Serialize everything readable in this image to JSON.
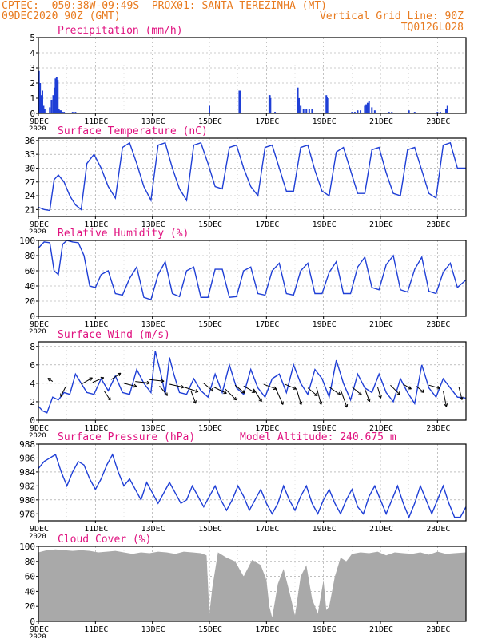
{
  "header": {
    "line1_left": "CPTEC:  050:38W-09:49S  PROX01: SANTA TEREZINHA (MT)",
    "line2_left": "09DEC2020 90Z (GMT)",
    "line2_right": "Vertical Grid Line: 90Z",
    "line3_right": "TQ0126L028"
  },
  "x_tick_labels": [
    "9DEC",
    "11DEC",
    "13DEC",
    "15DEC",
    "17DEC",
    "19DEC",
    "21DEC",
    "23DEC"
  ],
  "x_tick_days": [
    0,
    2,
    4,
    6,
    8,
    10,
    12,
    14
  ],
  "x_corner_label": "2020",
  "x_day_range": [
    0,
    15
  ],
  "model_altitude_text": "Model Altitude: 240.675  m",
  "colors": {
    "title": "#e0117f",
    "header": "#e87a1e",
    "line": "#1f3fd6",
    "bar": "#1f3fd6",
    "cloud": "#a9a9a9",
    "wind_arrow": "#000000"
  },
  "chart_data": [
    {
      "id": "precip",
      "type": "bar",
      "title": "Precipitation (mm/h)",
      "ylim": [
        0,
        5
      ],
      "yticks": [
        0,
        1,
        2,
        3,
        4,
        5
      ],
      "grid": true,
      "x_units": "days since 9DEC 00Z",
      "x": [
        0.02,
        0.06,
        0.1,
        0.14,
        0.18,
        0.22,
        0.4,
        0.46,
        0.52,
        0.56,
        0.6,
        0.64,
        0.68,
        0.72,
        0.76,
        0.8,
        0.84,
        0.9,
        1.2,
        1.3,
        6.0,
        7.05,
        7.08,
        8.1,
        8.12,
        8.14,
        8.3,
        9.1,
        9.14,
        9.2,
        9.3,
        9.4,
        9.5,
        9.6,
        10.1,
        10.12,
        10.14,
        11.0,
        11.1,
        11.2,
        11.3,
        11.45,
        11.5,
        11.55,
        11.6,
        11.7,
        11.8,
        12.3,
        12.4,
        13.0,
        13.2,
        14.0,
        14.1,
        14.3,
        14.35
      ],
      "values": [
        2.8,
        2.0,
        1.2,
        1.5,
        0.5,
        0.3,
        0.4,
        0.9,
        1.2,
        1.7,
        2.3,
        2.4,
        2.2,
        0.3,
        0.2,
        0.2,
        0.1,
        0.1,
        0.1,
        0.1,
        0.5,
        1.5,
        1.5,
        1.2,
        1.2,
        1.0,
        0.1,
        1.7,
        1.0,
        0.5,
        0.3,
        0.3,
        0.3,
        0.3,
        1.2,
        1.1,
        1.0,
        0.1,
        0.1,
        0.2,
        0.2,
        0.5,
        0.6,
        0.7,
        0.8,
        0.4,
        0.2,
        0.1,
        0.1,
        0.2,
        0.1,
        0.1,
        0.1,
        0.3,
        0.5
      ]
    },
    {
      "id": "temp",
      "type": "line",
      "title": "Surface Temperature (nC)",
      "ylim": [
        19.5,
        36.5
      ],
      "yticks": [
        21,
        24,
        27,
        30,
        33,
        36
      ],
      "grid": true,
      "x_units": "days since 9DEC 00Z",
      "x": [
        0,
        0.2,
        0.4,
        0.55,
        0.7,
        0.9,
        1.1,
        1.3,
        1.5,
        1.7,
        1.95,
        2.2,
        2.45,
        2.7,
        2.95,
        3.2,
        3.45,
        3.7,
        3.95,
        4.2,
        4.45,
        4.7,
        4.95,
        5.2,
        5.45,
        5.7,
        5.95,
        6.2,
        6.45,
        6.7,
        6.95,
        7.2,
        7.45,
        7.7,
        7.95,
        8.2,
        8.45,
        8.7,
        8.95,
        9.2,
        9.45,
        9.7,
        9.95,
        10.2,
        10.45,
        10.7,
        10.95,
        11.2,
        11.45,
        11.7,
        11.95,
        12.2,
        12.45,
        12.7,
        12.95,
        13.2,
        13.45,
        13.7,
        13.95,
        14.2,
        14.45,
        14.7,
        15.0
      ],
      "values": [
        21.5,
        21.0,
        20.8,
        27.5,
        28.5,
        27.0,
        24.0,
        22.0,
        21.0,
        31.0,
        33.0,
        30.0,
        26.0,
        23.5,
        34.5,
        35.5,
        31.0,
        26.0,
        23.0,
        35.0,
        35.5,
        30.0,
        25.5,
        23.0,
        35.0,
        35.5,
        31.0,
        26.0,
        25.5,
        34.5,
        35.0,
        30.0,
        26.0,
        24.0,
        34.5,
        35.0,
        30.0,
        25.0,
        25.0,
        34.5,
        35.0,
        29.5,
        25.0,
        24.0,
        33.5,
        34.5,
        29.5,
        24.5,
        24.5,
        34.0,
        34.5,
        29.0,
        24.5,
        24.0,
        34.0,
        34.5,
        29.5,
        24.5,
        23.5,
        35.0,
        35.5,
        30.0,
        30.0
      ]
    },
    {
      "id": "rh",
      "type": "line",
      "title": "Relative Humidity (%)",
      "ylim": [
        0,
        100
      ],
      "yticks": [
        0,
        20,
        40,
        60,
        80,
        100
      ],
      "grid": true,
      "x_units": "days since 9DEC 00Z",
      "x": [
        0,
        0.2,
        0.4,
        0.55,
        0.7,
        0.85,
        1.0,
        1.2,
        1.4,
        1.6,
        1.8,
        2.0,
        2.2,
        2.45,
        2.7,
        2.95,
        3.2,
        3.45,
        3.7,
        3.95,
        4.2,
        4.45,
        4.7,
        4.95,
        5.2,
        5.45,
        5.7,
        5.95,
        6.2,
        6.45,
        6.7,
        6.95,
        7.2,
        7.45,
        7.7,
        7.95,
        8.2,
        8.45,
        8.7,
        8.95,
        9.2,
        9.45,
        9.7,
        9.95,
        10.2,
        10.45,
        10.7,
        10.95,
        11.2,
        11.45,
        11.7,
        11.95,
        12.2,
        12.45,
        12.7,
        12.95,
        13.2,
        13.45,
        13.7,
        13.95,
        14.2,
        14.45,
        14.7,
        15.0
      ],
      "values": [
        90,
        98,
        97,
        60,
        55,
        95,
        100,
        98,
        97,
        80,
        40,
        38,
        55,
        60,
        30,
        28,
        50,
        65,
        25,
        22,
        55,
        72,
        30,
        26,
        60,
        65,
        25,
        25,
        62,
        62,
        25,
        26,
        60,
        65,
        30,
        28,
        60,
        70,
        30,
        28,
        60,
        70,
        30,
        30,
        58,
        72,
        30,
        30,
        65,
        78,
        38,
        35,
        68,
        80,
        35,
        32,
        62,
        78,
        33,
        30,
        58,
        70,
        38,
        48
      ]
    },
    {
      "id": "wind",
      "type": "line",
      "title": "Surface Wind (m/s)",
      "ylim": [
        0,
        8.5
      ],
      "yticks": [
        0,
        2,
        4,
        6,
        8
      ],
      "grid": true,
      "x_units": "days since 9DEC 00Z",
      "x": [
        0,
        0.15,
        0.3,
        0.5,
        0.7,
        0.9,
        1.1,
        1.3,
        1.5,
        1.7,
        1.95,
        2.2,
        2.45,
        2.7,
        2.95,
        3.2,
        3.45,
        3.7,
        3.95,
        4.1,
        4.3,
        4.45,
        4.6,
        4.75,
        4.95,
        5.2,
        5.45,
        5.7,
        5.95,
        6.2,
        6.45,
        6.7,
        6.95,
        7.2,
        7.45,
        7.7,
        7.95,
        8.2,
        8.45,
        8.7,
        8.95,
        9.2,
        9.45,
        9.7,
        9.95,
        10.2,
        10.45,
        10.7,
        10.95,
        11.2,
        11.45,
        11.7,
        11.95,
        12.2,
        12.45,
        12.7,
        12.95,
        13.2,
        13.45,
        13.7,
        13.95,
        14.2,
        14.45,
        14.7,
        15.0
      ],
      "values": [
        1.5,
        1.0,
        0.8,
        2.5,
        2.2,
        3.0,
        2.8,
        5.0,
        4.0,
        3.0,
        2.8,
        4.5,
        3.2,
        4.8,
        3.0,
        2.8,
        5.5,
        4.0,
        3.0,
        7.5,
        5.0,
        2.8,
        6.8,
        5.0,
        3.0,
        2.8,
        4.5,
        3.2,
        2.5,
        5.0,
        3.0,
        6.0,
        3.5,
        2.8,
        5.5,
        3.5,
        2.5,
        4.5,
        5.0,
        3.0,
        6.0,
        4.0,
        2.8,
        5.5,
        4.5,
        2.5,
        6.5,
        4.0,
        2.2,
        5.0,
        3.5,
        3.0,
        5.0,
        3.0,
        2.0,
        4.5,
        3.0,
        1.8,
        6.0,
        3.5,
        2.5,
        4.5,
        3.5,
        2.5,
        2.4
      ],
      "vectors_note": "wind direction arrows",
      "arrows": [
        {
          "x": 0.5,
          "y": 4.2,
          "dx": -6,
          "dy": -4
        },
        {
          "x": 0.95,
          "y": 3.6,
          "dx": -6,
          "dy": 12
        },
        {
          "x": 1.5,
          "y": 3.9,
          "dx": 14,
          "dy": -8
        },
        {
          "x": 1.9,
          "y": 4.1,
          "dx": 14,
          "dy": -6
        },
        {
          "x": 2.3,
          "y": 3.2,
          "dx": 8,
          "dy": 12
        },
        {
          "x": 2.55,
          "y": 4.4,
          "dx": 12,
          "dy": -8
        },
        {
          "x": 3.0,
          "y": 4.0,
          "dx": 16,
          "dy": 4
        },
        {
          "x": 3.4,
          "y": 4.2,
          "dx": 18,
          "dy": 2
        },
        {
          "x": 3.9,
          "y": 4.4,
          "dx": 18,
          "dy": 2
        },
        {
          "x": 4.25,
          "y": 3.7,
          "dx": 10,
          "dy": 12
        },
        {
          "x": 4.6,
          "y": 3.9,
          "dx": 18,
          "dy": 4
        },
        {
          "x": 5.1,
          "y": 3.6,
          "dx": 18,
          "dy": 6
        },
        {
          "x": 5.35,
          "y": 3.2,
          "dx": 6,
          "dy": 16
        },
        {
          "x": 5.8,
          "y": 4.0,
          "dx": 12,
          "dy": 10
        },
        {
          "x": 6.15,
          "y": 3.6,
          "dx": 16,
          "dy": 8
        },
        {
          "x": 6.55,
          "y": 3.4,
          "dx": 14,
          "dy": 14
        },
        {
          "x": 6.9,
          "y": 3.8,
          "dx": 12,
          "dy": 10
        },
        {
          "x": 7.2,
          "y": 3.7,
          "dx": 14,
          "dy": 8
        },
        {
          "x": 7.55,
          "y": 3.4,
          "dx": 10,
          "dy": 16
        },
        {
          "x": 7.9,
          "y": 3.9,
          "dx": 16,
          "dy": 6
        },
        {
          "x": 8.3,
          "y": 3.6,
          "dx": 10,
          "dy": 22
        },
        {
          "x": 8.65,
          "y": 3.9,
          "dx": 14,
          "dy": 6
        },
        {
          "x": 9.05,
          "y": 3.4,
          "dx": 6,
          "dy": 20
        },
        {
          "x": 9.45,
          "y": 3.5,
          "dx": 12,
          "dy": 10
        },
        {
          "x": 9.75,
          "y": 3.6,
          "dx": 6,
          "dy": 22
        },
        {
          "x": 10.2,
          "y": 3.6,
          "dx": 14,
          "dy": 10
        },
        {
          "x": 10.6,
          "y": 3.3,
          "dx": 8,
          "dy": 22
        },
        {
          "x": 11.0,
          "y": 3.6,
          "dx": 12,
          "dy": 10
        },
        {
          "x": 11.45,
          "y": 3.4,
          "dx": 6,
          "dy": 16
        },
        {
          "x": 11.9,
          "y": 3.6,
          "dx": 4,
          "dy": 14
        },
        {
          "x": 12.35,
          "y": 3.8,
          "dx": 12,
          "dy": 12
        },
        {
          "x": 12.8,
          "y": 3.9,
          "dx": 10,
          "dy": 6
        },
        {
          "x": 13.25,
          "y": 3.7,
          "dx": 10,
          "dy": 8
        },
        {
          "x": 13.7,
          "y": 3.8,
          "dx": 14,
          "dy": 4
        },
        {
          "x": 14.2,
          "y": 3.2,
          "dx": 4,
          "dy": 20
        },
        {
          "x": 14.75,
          "y": 3.6,
          "dx": 4,
          "dy": 16
        }
      ]
    },
    {
      "id": "pressure",
      "type": "line",
      "title": "Surface Pressure (hPa)",
      "ylim": [
        977,
        988
      ],
      "yticks": [
        978,
        980,
        982,
        984,
        986,
        988
      ],
      "grid": true,
      "x_units": "days since 9DEC 00Z",
      "x": [
        0,
        0.2,
        0.4,
        0.6,
        0.8,
        1.0,
        1.2,
        1.4,
        1.6,
        1.8,
        2.0,
        2.2,
        2.4,
        2.6,
        2.8,
        3.0,
        3.2,
        3.4,
        3.6,
        3.8,
        4.0,
        4.2,
        4.4,
        4.6,
        4.8,
        5.0,
        5.2,
        5.4,
        5.6,
        5.8,
        6.0,
        6.2,
        6.4,
        6.6,
        6.8,
        7.0,
        7.2,
        7.4,
        7.6,
        7.8,
        8.0,
        8.2,
        8.4,
        8.6,
        8.8,
        9.0,
        9.2,
        9.4,
        9.6,
        9.8,
        10.0,
        10.2,
        10.4,
        10.6,
        10.8,
        11.0,
        11.2,
        11.4,
        11.6,
        11.8,
        12.0,
        12.2,
        12.4,
        12.6,
        12.8,
        13.0,
        13.2,
        13.4,
        13.6,
        13.8,
        14.0,
        14.2,
        14.4,
        14.6,
        14.8,
        15.0
      ],
      "values": [
        984.5,
        985.5,
        986.0,
        986.5,
        984.0,
        982.0,
        984.0,
        985.5,
        985.0,
        983.0,
        981.5,
        983.0,
        985.0,
        986.5,
        984.0,
        982.0,
        983.0,
        981.5,
        980.0,
        982.5,
        981.0,
        979.5,
        981.0,
        982.5,
        981.0,
        979.5,
        980.0,
        982.0,
        980.5,
        979.0,
        980.5,
        982.0,
        980.0,
        978.5,
        980.0,
        982.0,
        980.5,
        978.5,
        980.0,
        981.5,
        979.5,
        978.0,
        979.5,
        982.0,
        980.0,
        978.5,
        980.5,
        982.0,
        979.5,
        978.0,
        980.0,
        981.5,
        979.5,
        978.0,
        980.0,
        981.5,
        979.0,
        978.0,
        980.5,
        982.0,
        980.0,
        978.0,
        980.0,
        982.0,
        979.5,
        977.5,
        979.5,
        982.0,
        980.0,
        978.0,
        980.0,
        982.0,
        979.5,
        977.5,
        977.5,
        979.0
      ]
    },
    {
      "id": "cloud",
      "type": "area",
      "title": "Cloud Cover (%)",
      "ylim": [
        0,
        100
      ],
      "yticks": [
        0,
        20,
        40,
        60,
        80,
        100
      ],
      "grid": true,
      "x_units": "days since 9DEC 00Z",
      "x": [
        0,
        0.3,
        0.6,
        0.9,
        1.2,
        1.5,
        1.8,
        2.1,
        2.4,
        2.7,
        3.0,
        3.3,
        3.6,
        3.9,
        4.2,
        4.5,
        4.8,
        5.1,
        5.4,
        5.7,
        5.9,
        6.0,
        6.1,
        6.3,
        6.6,
        6.9,
        7.2,
        7.5,
        7.8,
        8.0,
        8.1,
        8.2,
        8.4,
        8.6,
        8.8,
        9.0,
        9.2,
        9.4,
        9.6,
        9.8,
        10.0,
        10.1,
        10.2,
        10.4,
        10.6,
        10.8,
        11.0,
        11.3,
        11.6,
        11.9,
        12.2,
        12.5,
        12.8,
        13.1,
        13.4,
        13.7,
        14.0,
        14.3,
        14.6,
        15.0
      ],
      "values": [
        92,
        95,
        96,
        95,
        94,
        95,
        94,
        92,
        93,
        94,
        92,
        90,
        92,
        91,
        93,
        92,
        90,
        93,
        92,
        91,
        88,
        10,
        45,
        92,
        85,
        80,
        60,
        82,
        75,
        55,
        20,
        5,
        50,
        70,
        40,
        8,
        60,
        75,
        30,
        10,
        55,
        15,
        20,
        60,
        85,
        80,
        90,
        92,
        91,
        93,
        88,
        92,
        91,
        90,
        92,
        89,
        93,
        90,
        91,
        92
      ]
    }
  ]
}
